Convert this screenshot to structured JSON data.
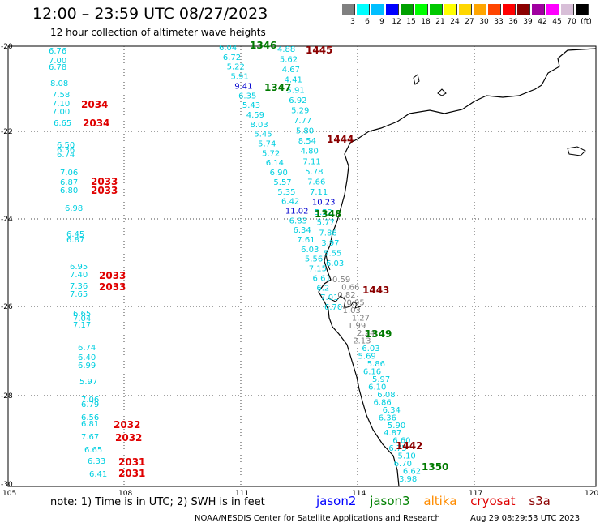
{
  "header": {
    "title": "12:00 – 23:59 UTC 08/27/2023",
    "subtitle": "12 hour collection of altimeter wave heights"
  },
  "legend": {
    "colors": [
      "#808080",
      "#00ffff",
      "#00bfff",
      "#0000ff",
      "#00a000",
      "#00ff00",
      "#00c800",
      "#ffff00",
      "#ffd700",
      "#ffa500",
      "#ff4500",
      "#ff0000",
      "#8b0000",
      "#a000a0",
      "#ff00ff",
      "#d8bfd8",
      "#000000"
    ],
    "labels": [
      "3",
      "6",
      "9",
      "12",
      "15",
      "18",
      "21",
      "24",
      "27",
      "30",
      "33",
      "36",
      "39",
      "42",
      "45",
      "70",
      "(ft)"
    ]
  },
  "axes": {
    "lat_labels": [
      "-20",
      "-22",
      "-24",
      "-26",
      "-28",
      "-30"
    ],
    "lon_labels": [
      "105",
      "108",
      "111",
      "114",
      "117",
      "120"
    ]
  },
  "passes": [
    {
      "label": "1445",
      "color": "#8b0000"
    },
    {
      "label": "1346",
      "color": "#007a00"
    },
    {
      "label": "1347",
      "color": "#007a00"
    },
    {
      "label": "1444",
      "color": "#8b0000"
    },
    {
      "label": "1348",
      "color": "#007a00"
    },
    {
      "label": "1443",
      "color": "#8b0000"
    },
    {
      "label": "1349",
      "color": "#007a00"
    },
    {
      "label": "1442",
      "color": "#8b0000"
    },
    {
      "label": "1350",
      "color": "#007a00"
    },
    {
      "label": "2034",
      "color": "#e00000"
    },
    {
      "label": "2034",
      "color": "#e00000"
    },
    {
      "label": "2033",
      "color": "#e00000"
    },
    {
      "label": "2033",
      "color": "#e00000"
    },
    {
      "label": "2033",
      "color": "#e00000"
    },
    {
      "label": "2033",
      "color": "#e00000"
    },
    {
      "label": "2032",
      "color": "#e00000"
    },
    {
      "label": "2032",
      "color": "#e00000"
    },
    {
      "label": "2031",
      "color": "#e00000"
    },
    {
      "label": "2031",
      "color": "#e00000"
    }
  ],
  "obs_west": [
    "6.76",
    "7.00",
    "6.78",
    "8.08",
    "7.58",
    "7.10",
    "7.00",
    "6.65",
    "6.50",
    "6.36",
    "6.74",
    "7.06",
    "6.87",
    "6.80",
    "6.98",
    "6.45",
    "6.87",
    "6.95",
    "7.40",
    "7.36",
    "7.65",
    "6.65",
    "7.04",
    "7.17",
    "6.74",
    "6.40",
    "6.99",
    "5.97",
    "7.06",
    "6.79",
    "6.56",
    "6.81",
    "7.67",
    "6.65",
    "6.33",
    "6.41"
  ],
  "obs_t1": [
    "6.04",
    "6.72",
    "5.22",
    "5.91",
    "9.41",
    "6.35",
    "5.43",
    "4.59",
    "8.03",
    "5.45",
    "5.74",
    "5.72",
    "6.14",
    "6.90",
    "5.57",
    "5.35",
    "6.42",
    "11.02",
    "6.83",
    "6.34",
    "7.61",
    "6.03",
    "5.56",
    "7.15",
    "6.61",
    "6.2",
    "7.01",
    "6.70"
  ],
  "obs_t2": [
    "4.88",
    "5.62",
    "4.67",
    "4.41",
    "5.91",
    "6.92",
    "5.29",
    "7.77",
    "5.80",
    "8.54",
    "4.80",
    "7.11",
    "5.78",
    "7.66",
    "7.11",
    "10.23",
    "5.52",
    "5.77",
    "7.86",
    "3.97",
    "5.55",
    "6.03"
  ],
  "obs_t3": [
    "0.59",
    "0.66",
    "0.82",
    "0.95",
    "1.03",
    "1.27",
    "1.99",
    "2.24",
    "2.13",
    "6.03",
    "5.69",
    "5.86",
    "6.16",
    "5.97",
    "6.10",
    "6.08",
    "6.86",
    "6.34",
    "6.36",
    "5.90",
    "4.87",
    "6.60",
    "6.75",
    "5.10",
    "6.70",
    "6.62",
    "3.98"
  ],
  "footer": {
    "note": "note:  1) Time is in UTC;  2) SWH is in feet",
    "satellites": [
      {
        "name": "jason2",
        "color": "#0000ff"
      },
      {
        "name": "jason3",
        "color": "#008000"
      },
      {
        "name": "altika",
        "color": "#ff8c00"
      },
      {
        "name": "cryosat",
        "color": "#e00000"
      },
      {
        "name": "s3a",
        "color": "#8b0000"
      }
    ],
    "credit": "NOAA/NESDIS Center for Satellite Applications and Research",
    "timestamp": "Aug 29 08:29:53 UTC 2023"
  }
}
